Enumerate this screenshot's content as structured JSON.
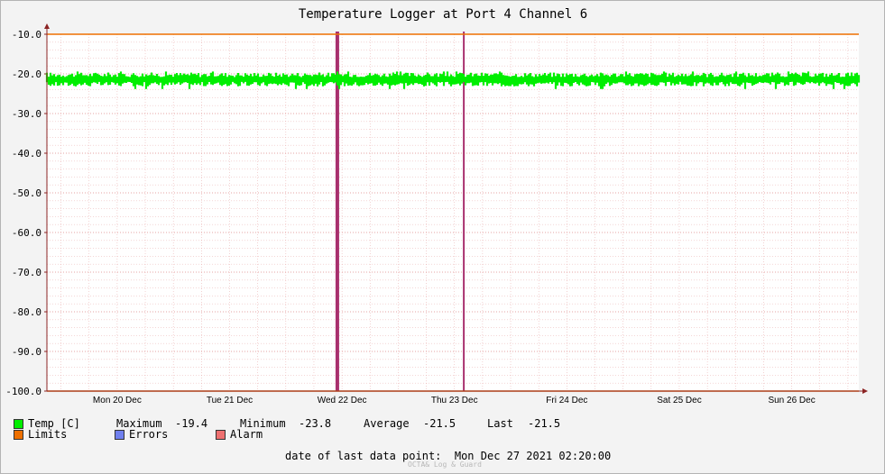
{
  "colors": {
    "background": "#f3f3f3",
    "plot_background": "#ffffff",
    "grid": "#e6a3a3",
    "axis": "#8b2323",
    "temp": "#00ee00",
    "limits": "#ee7000",
    "errors": "#7080ee",
    "alarm": "#ee7070",
    "event_marker": "#a8306e"
  },
  "chart_data": {
    "type": "line",
    "title": "Temperature Logger at Port 4 Channel 6",
    "ylim": [
      -100,
      -10
    ],
    "y_ticks": [
      "-10.0",
      "-20.0",
      "-30.0",
      "-40.0",
      "-50.0",
      "-60.0",
      "-70.0",
      "-80.0",
      "-90.0",
      "-100.0"
    ],
    "y_tick_values": [
      -10,
      -20,
      -30,
      -40,
      -50,
      -60,
      -70,
      -80,
      -90,
      -100
    ],
    "x_range": [
      "2021-12-19T21:00",
      "2021-12-27T02:20"
    ],
    "x_ticks": [
      "Mon 20 Dec",
      "Tue 21 Dec",
      "Wed 22 Dec",
      "Thu 23 Dec",
      "Fri 24 Dec",
      "Sat 25 Dec",
      "Sun 26 Dec"
    ],
    "x_tick_dates": [
      "2021-12-20T12:00",
      "2021-12-21T12:00",
      "2021-12-22T12:00",
      "2021-12-23T12:00",
      "2021-12-24T12:00",
      "2021-12-25T12:00",
      "2021-12-26T12:00"
    ],
    "grid": true,
    "series": [
      {
        "name": "Temp [C]",
        "color": "#00ee00",
        "band_upper": -19.4,
        "band_lower": -23.8,
        "typical_upper": -20.2,
        "typical_lower": -22.6,
        "x_start": "2021-12-19T21:00",
        "x_end": "2021-12-27T02:20"
      }
    ],
    "limit_lines": [
      -10,
      -100
    ],
    "event_markers": [
      {
        "date": "2021-12-22T11:00",
        "thick": true
      },
      {
        "date": "2021-12-23T14:00",
        "thick": false
      }
    ]
  },
  "legend": {
    "temp_label": "Temp [C]",
    "maximum_label": "Maximum",
    "maximum_value": "-19.4",
    "minimum_label": "Minimum",
    "minimum_value": "-23.8",
    "average_label": "Average",
    "average_value": "-21.5",
    "last_label": "Last",
    "last_value": "-21.5",
    "limits_label": "Limits",
    "errors_label": "Errors",
    "alarm_label": "Alarm"
  },
  "footer": {
    "last_data_point": "date of last data point:  Mon Dec 27 2021 02:20:00",
    "credit": "OCTA& Log & Guard"
  }
}
